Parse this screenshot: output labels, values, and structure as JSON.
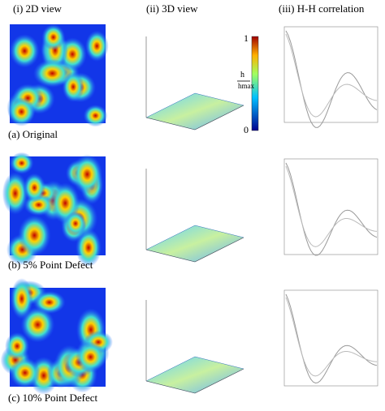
{
  "columns": [
    "(i) 2D view",
    "(ii) 3D view",
    "(iii) H-H correlation"
  ],
  "rows": [
    {
      "label": "(a) Original"
    },
    {
      "label": "(b) 5% Point Defect"
    },
    {
      "label": "(c) 10% Point Defect"
    }
  ],
  "colorbar": {
    "max": "1",
    "min": "0",
    "numerator": "h",
    "denominator": "hmax"
  }
}
